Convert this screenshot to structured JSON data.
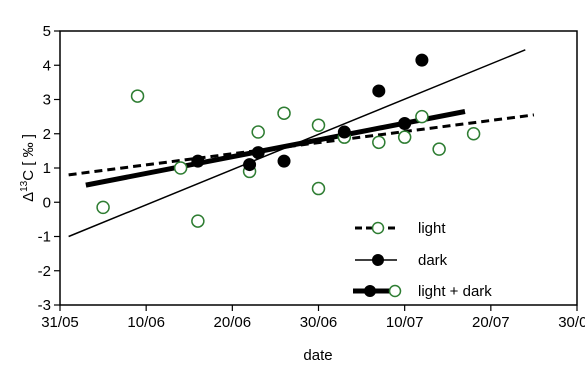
{
  "chart_data": {
    "type": "scatter",
    "xlabel": "date",
    "ylabel_main": "Δ",
    "ylabel_sup": "13",
    "ylabel_rest": "C [ ‰ ]",
    "x_ticks": [
      "31/05",
      "10/06",
      "20/06",
      "30/06",
      "10/07",
      "20/07",
      "30/07"
    ],
    "x_ticks_day": [
      0,
      10,
      20,
      30,
      40,
      50,
      60
    ],
    "xlim_day": [
      0,
      60
    ],
    "x_day_zero_is": "31/05",
    "ylim": [
      -3,
      5
    ],
    "y_ticks": [
      -3,
      -2,
      -1,
      0,
      1,
      2,
      3,
      4,
      5
    ],
    "grid": false,
    "legend_position": "bottom-right",
    "series": [
      {
        "name": "light",
        "marker": "open-circle",
        "line_style": "dashed",
        "points": [
          [
            5,
            -0.15
          ],
          [
            9,
            3.1
          ],
          [
            14,
            1.0
          ],
          [
            16,
            -0.55
          ],
          [
            22,
            0.9
          ],
          [
            23,
            2.05
          ],
          [
            26,
            2.6
          ],
          [
            30,
            2.25
          ],
          [
            30,
            0.4
          ],
          [
            33,
            1.9
          ],
          [
            37,
            1.75
          ],
          [
            40,
            1.9
          ],
          [
            42,
            2.5
          ],
          [
            44,
            1.55
          ],
          [
            48,
            2.0
          ]
        ],
        "fit": [
          [
            1,
            0.8
          ],
          [
            55,
            2.55
          ]
        ]
      },
      {
        "name": "dark",
        "marker": "filled-circle",
        "line_style": "solid-thin",
        "points": [
          [
            16,
            1.2
          ],
          [
            22,
            1.1
          ],
          [
            23,
            1.45
          ],
          [
            26,
            1.2
          ],
          [
            33,
            2.05
          ],
          [
            37,
            3.25
          ],
          [
            40,
            2.3
          ],
          [
            42,
            4.15
          ]
        ],
        "fit": [
          [
            1,
            -1.0
          ],
          [
            54,
            4.45
          ]
        ]
      },
      {
        "name": "light + dark",
        "marker": "filled-and-open-circle",
        "line_style": "solid-thick",
        "fit": [
          [
            3,
            0.5
          ],
          [
            47,
            2.65
          ]
        ]
      }
    ]
  }
}
